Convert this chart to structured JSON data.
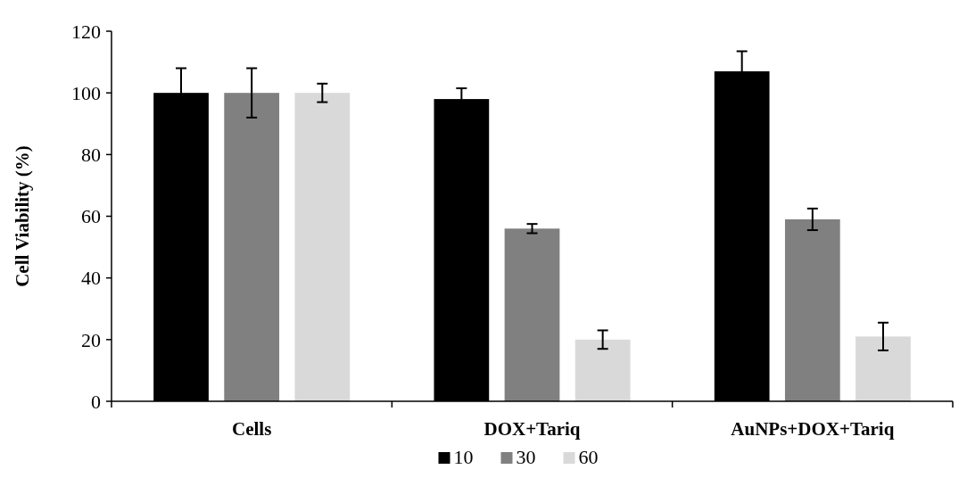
{
  "chart_data": {
    "type": "bar",
    "ylabel": "Cell Viability (%)",
    "categories": [
      "Cells",
      "DOX+Tariq",
      "AuNPs+DOX+Tariq"
    ],
    "series": [
      {
        "name": "10",
        "color": "#000000",
        "values": [
          100,
          98,
          107
        ],
        "errors": [
          8,
          3.5,
          6.5
        ]
      },
      {
        "name": "30",
        "color": "#808080",
        "values": [
          100,
          56,
          59
        ],
        "errors": [
          8,
          1.5,
          3.5
        ]
      },
      {
        "name": "60",
        "color": "#d9d9d9",
        "values": [
          100,
          20,
          21
        ],
        "errors": [
          3,
          3,
          4.5
        ]
      }
    ],
    "ylim": [
      0,
      120
    ],
    "yticks": [
      0,
      20,
      40,
      60,
      80,
      100,
      120
    ],
    "grid": false,
    "legend": "bottom"
  }
}
